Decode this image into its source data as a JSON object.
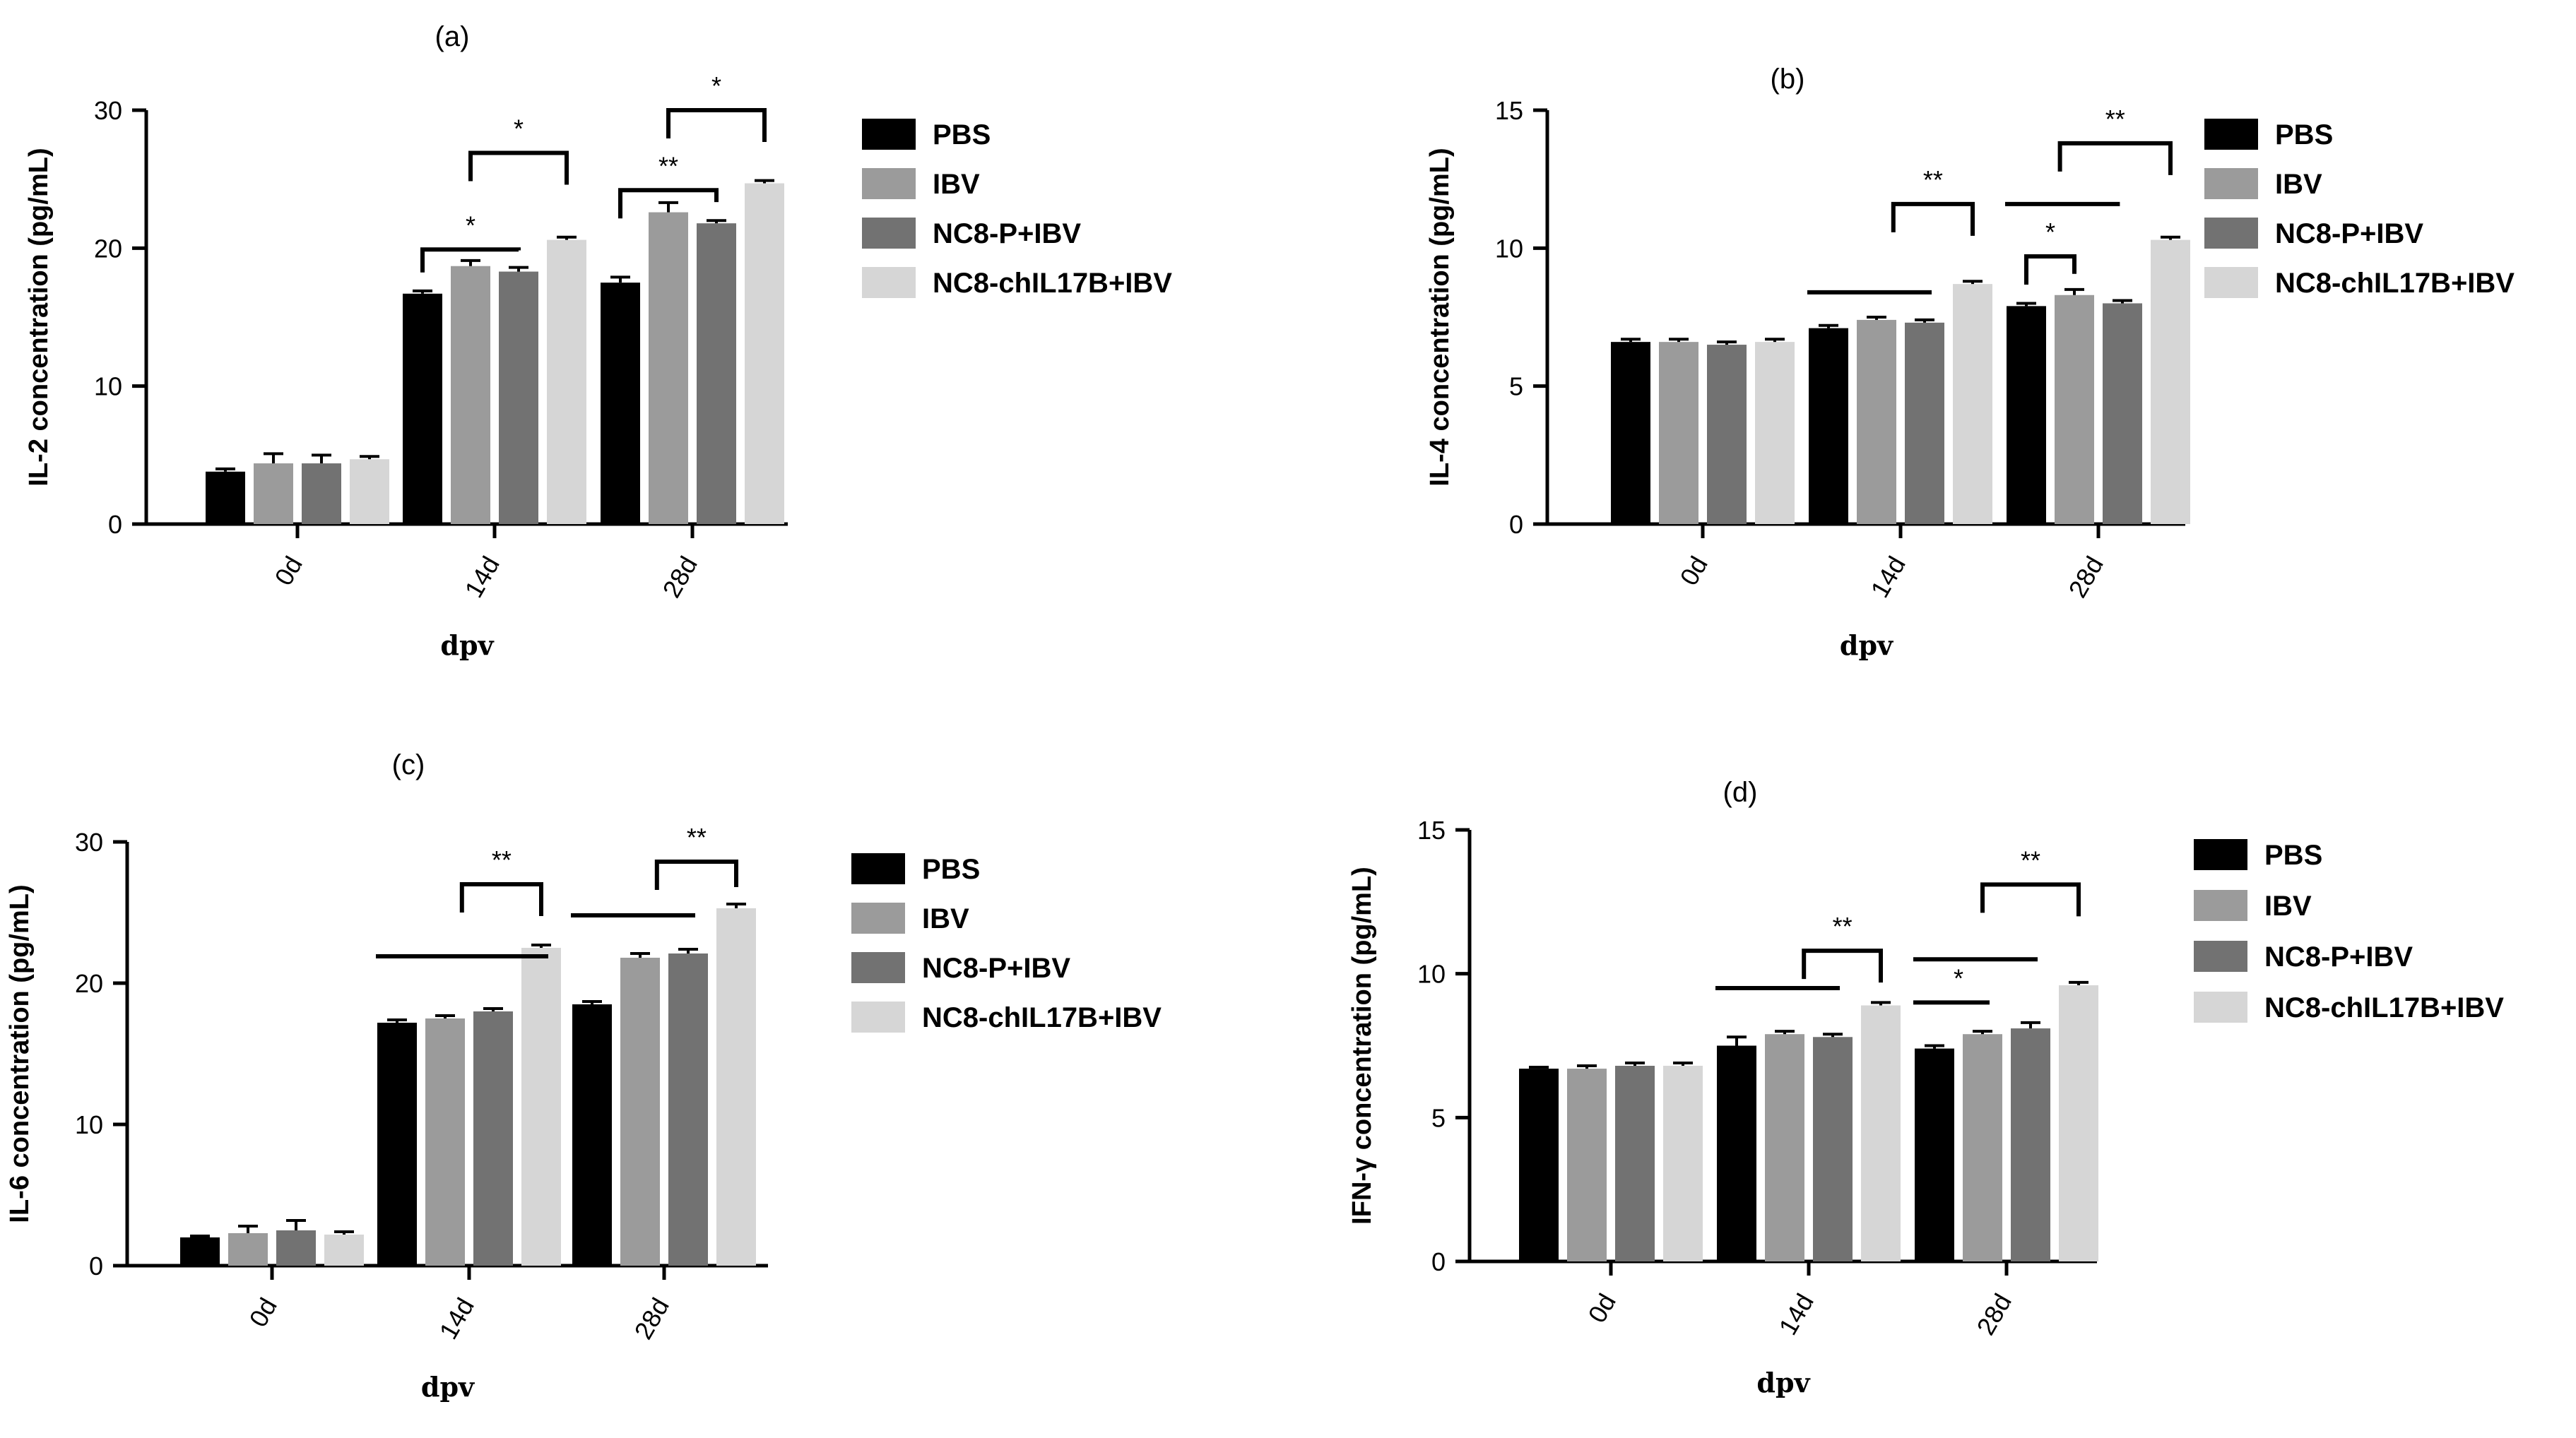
{
  "colors": {
    "PBS": "#000000",
    "IBV": "#9b9b9b",
    "NC8-P+IBV": "#727272",
    "NC8-chIL17B+IBV": "#d6d6d6"
  },
  "chart_data": [
    {
      "type": "bar",
      "panel": "(a)",
      "xlabel": "dpv",
      "ylabel": "IL-2 concentration (pg/mL)",
      "ylim": [
        0,
        30
      ],
      "yticks": [
        "0",
        "10",
        "20",
        "30"
      ],
      "categories": [
        "0d",
        "14d",
        "28d"
      ],
      "series": [
        {
          "name": "PBS",
          "values": [
            3.8,
            16.7,
            17.5
          ],
          "errors": [
            0.2,
            0.2,
            0.4
          ]
        },
        {
          "name": "IBV",
          "values": [
            4.4,
            18.7,
            22.6
          ],
          "errors": [
            0.7,
            0.4,
            0.7
          ]
        },
        {
          "name": "NC8-P+IBV",
          "values": [
            4.4,
            18.3,
            21.8
          ],
          "errors": [
            0.6,
            0.3,
            0.2
          ]
        },
        {
          "name": "NC8-chIL17B+IBV",
          "values": [
            4.7,
            20.6,
            24.7
          ],
          "errors": [
            0.2,
            0.2,
            0.2
          ]
        }
      ],
      "legend": [
        "PBS",
        "IBV",
        "NC8-P+IBV",
        "NC8-chIL17B+IBV"
      ],
      "annotations": [
        "*",
        "*",
        "**",
        "*"
      ]
    },
    {
      "type": "bar",
      "panel": "(b)",
      "xlabel": "dpv",
      "ylabel": "IL-4 concentration (pg/mL)",
      "ylim": [
        0,
        15
      ],
      "yticks": [
        "0",
        "5",
        "10",
        "15"
      ],
      "categories": [
        "0d",
        "14d",
        "28d"
      ],
      "series": [
        {
          "name": "PBS",
          "values": [
            6.6,
            7.1,
            7.9
          ],
          "errors": [
            0.1,
            0.1,
            0.1
          ]
        },
        {
          "name": "IBV",
          "values": [
            6.6,
            7.4,
            8.3
          ],
          "errors": [
            0.1,
            0.1,
            0.2
          ]
        },
        {
          "name": "NC8-P+IBV",
          "values": [
            6.5,
            7.3,
            8.0
          ],
          "errors": [
            0.1,
            0.1,
            0.1
          ]
        },
        {
          "name": "NC8-chIL17B+IBV",
          "values": [
            6.6,
            8.7,
            10.3
          ],
          "errors": [
            0.1,
            0.1,
            0.1
          ]
        }
      ],
      "legend": [
        "PBS",
        "IBV",
        "NC8-P+IBV",
        "NC8-chIL17B+IBV"
      ],
      "annotations": [
        "**",
        "*",
        "**"
      ]
    },
    {
      "type": "bar",
      "panel": "(c)",
      "xlabel": "dpv",
      "ylabel": "IL-6 concentration (pg/mL)",
      "ylim": [
        0,
        30
      ],
      "yticks": [
        "0",
        "10",
        "20",
        "30"
      ],
      "categories": [
        "0d",
        "14d",
        "28d"
      ],
      "series": [
        {
          "name": "PBS",
          "values": [
            2.0,
            17.2,
            18.5
          ],
          "errors": [
            0.1,
            0.2,
            0.2
          ]
        },
        {
          "name": "IBV",
          "values": [
            2.3,
            17.5,
            21.8
          ],
          "errors": [
            0.5,
            0.2,
            0.3
          ]
        },
        {
          "name": "NC8-P+IBV",
          "values": [
            2.5,
            18.0,
            22.1
          ],
          "errors": [
            0.7,
            0.2,
            0.3
          ]
        },
        {
          "name": "NC8-chIL17B+IBV",
          "values": [
            2.2,
            22.5,
            25.3
          ],
          "errors": [
            0.2,
            0.2,
            0.3
          ]
        }
      ],
      "legend": [
        "PBS",
        "IBV",
        "NC8-P+IBV",
        "NC8-chIL17B+IBV"
      ],
      "annotations": [
        "**",
        "**"
      ]
    },
    {
      "type": "bar",
      "panel": "(d)",
      "xlabel": "dpv",
      "ylabel": "IFN-γ concentration (pg/mL)",
      "ylim": [
        0,
        15
      ],
      "yticks": [
        "0",
        "5",
        "10",
        "15"
      ],
      "categories": [
        "0d",
        "14d",
        "28d"
      ],
      "series": [
        {
          "name": "PBS",
          "values": [
            6.7,
            7.5,
            7.4
          ],
          "errors": [
            0.05,
            0.3,
            0.1
          ]
        },
        {
          "name": "IBV",
          "values": [
            6.7,
            7.9,
            7.9
          ],
          "errors": [
            0.1,
            0.1,
            0.1
          ]
        },
        {
          "name": "NC8-P+IBV",
          "values": [
            6.8,
            7.8,
            8.1
          ],
          "errors": [
            0.1,
            0.1,
            0.2
          ]
        },
        {
          "name": "NC8-chIL17B+IBV",
          "values": [
            6.8,
            8.9,
            9.6
          ],
          "errors": [
            0.1,
            0.1,
            0.1
          ]
        }
      ],
      "legend": [
        "PBS",
        "IBV",
        "NC8-P+IBV",
        "NC8-chIL17B+IBV"
      ],
      "annotations": [
        "**",
        "*",
        "**"
      ]
    }
  ]
}
